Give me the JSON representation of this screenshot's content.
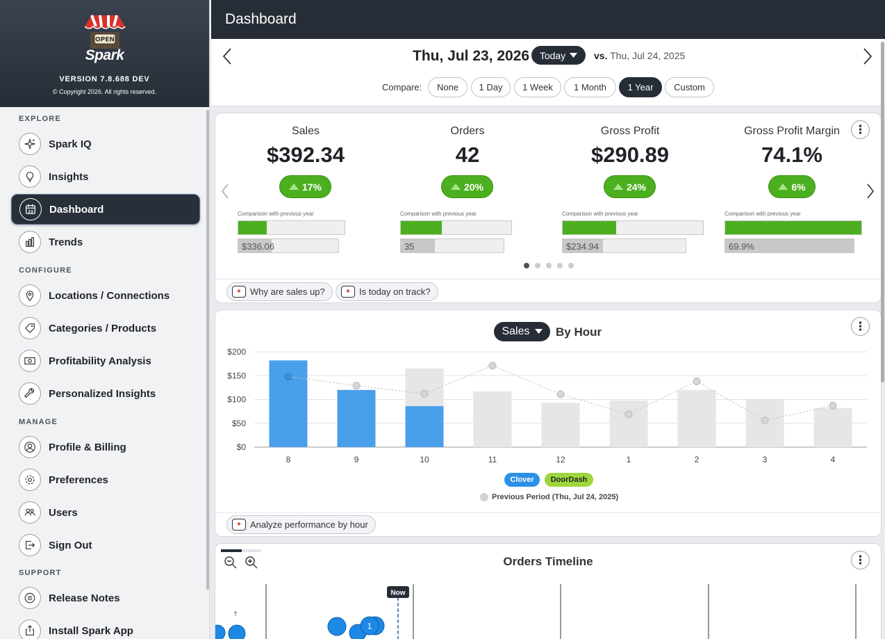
{
  "sidebar": {
    "brand": "Spark",
    "logo_sign": "OPEN",
    "version": "VERSION 7.8.688 DEV",
    "copyright": "© Copyright 2026. All rights reserved.",
    "sections": {
      "explore": "EXPLORE",
      "configure": "CONFIGURE",
      "manage": "MANAGE",
      "support": "SUPPORT"
    },
    "items": [
      {
        "label": "Spark IQ",
        "icon": "sparkle-icon"
      },
      {
        "label": "Insights",
        "icon": "lightbulb-icon"
      },
      {
        "label": "Dashboard",
        "icon": "calendar-icon",
        "calendar_day": "23"
      },
      {
        "label": "Trends",
        "icon": "bar-chart-icon"
      },
      {
        "label": "Locations / Connections",
        "icon": "map-pin-icon"
      },
      {
        "label": "Categories / Products",
        "icon": "tag-icon"
      },
      {
        "label": "Profitability Analysis",
        "icon": "cash-icon"
      },
      {
        "label": "Personalized Insights",
        "icon": "wrench-icon"
      },
      {
        "label": "Profile & Billing",
        "icon": "user-circle-icon"
      },
      {
        "label": "Preferences",
        "icon": "gear-icon"
      },
      {
        "label": "Users",
        "icon": "users-icon"
      },
      {
        "label": "Sign Out",
        "icon": "sign-out-icon"
      },
      {
        "label": "Release Notes",
        "icon": "list-icon"
      },
      {
        "label": "Install Spark App",
        "icon": "share-icon"
      }
    ]
  },
  "header": {
    "title": "Dashboard"
  },
  "datebar": {
    "date": "Thu, Jul 23, 2026",
    "period_button": "Today",
    "vs_label": "vs.",
    "vs_date": "Thu, Jul 24, 2025",
    "compare_label": "Compare:",
    "compare_options": [
      "None",
      "1 Day",
      "1 Week",
      "1 Month",
      "1 Year",
      "Custom"
    ],
    "compare_selected": "1 Year"
  },
  "metrics": [
    {
      "label": "Sales",
      "value": "$392.34",
      "change": "17%",
      "cmp_label": "Comparison with previous year",
      "prev": "$336.06",
      "current_fill": 0.27,
      "prev_fill": 0.33
    },
    {
      "label": "Orders",
      "value": "42",
      "change": "20%",
      "cmp_label": "Comparison with previous year",
      "prev": "35",
      "current_fill": 0.37,
      "prev_fill": 0.33
    },
    {
      "label": "Gross Profit",
      "value": "$290.89",
      "change": "24%",
      "cmp_label": "Comparison with previous year",
      "prev": "$234.94",
      "current_fill": 0.38,
      "prev_fill": 0.33
    },
    {
      "label": "Gross Profit Margin",
      "value": "74.1%",
      "change": "6%",
      "cmp_label": "Comparison with previous year",
      "prev": "69.9%",
      "current_fill": 1.0,
      "prev_fill": 1.0
    }
  ],
  "carousel": {
    "pages": 5,
    "current": 1
  },
  "ask_buttons": {
    "why_sales": "Why are sales up?",
    "on_track": "Is today on track?",
    "analyze_hour": "Analyze performance by hour"
  },
  "hourly": {
    "metric_select": "Sales",
    "title": "By Hour",
    "legend_clover": "Clover",
    "legend_doordash": "DoorDash",
    "legend_previous": "Previous Period (Thu, Jul 24, 2025)"
  },
  "chart_data": {
    "type": "bar",
    "categories": [
      "8",
      "9",
      "10",
      "11",
      "12",
      "1",
      "2",
      "3",
      "4"
    ],
    "ylim": [
      0,
      200
    ],
    "yticks": [
      "$0",
      "$50",
      "$100",
      "$150",
      "$200"
    ],
    "series": [
      {
        "name": "Clover",
        "values": [
          182,
          120,
          86,
          null,
          null,
          null,
          null,
          null,
          null
        ]
      },
      {
        "name": "Previous Period (Thu, Jul 24, 2025)",
        "values": [
          null,
          null,
          165,
          117,
          93,
          98,
          120,
          101,
          82
        ]
      },
      {
        "name": "Previous Period line",
        "values": [
          148,
          129,
          112,
          171,
          111,
          69,
          138,
          56,
          87
        ]
      }
    ],
    "colors": {
      "current": "#4a9fea",
      "previous": "#e6e6e6",
      "line": "#c9c9c9"
    }
  },
  "timeline": {
    "title": "Orders Timeline",
    "now_label": "Now",
    "bubble_count": "1"
  }
}
